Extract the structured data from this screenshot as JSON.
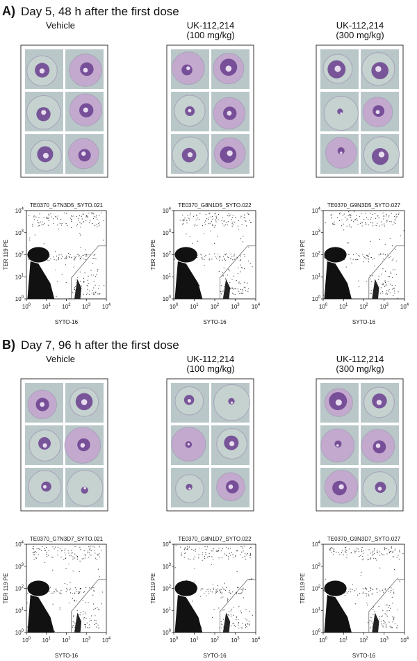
{
  "panels": [
    {
      "label": "A)",
      "title": "Day 5, 48 h after the first dose",
      "groups": [
        {
          "label_lines": [
            "Vehicle"
          ]
        },
        {
          "label_lines": [
            "UK-112,214",
            "(100 mg/kg)"
          ]
        },
        {
          "label_lines": [
            "UK-112,214",
            "(300 mg/kg)"
          ]
        }
      ],
      "plots": [
        {
          "title": "TE0370_G7N3D5_SYTO.021"
        },
        {
          "title": "TE0370_G8N1D5_SYTO.022"
        },
        {
          "title": "TE0370_G9N3D5_SYTO.027"
        }
      ]
    },
    {
      "label": "B)",
      "title": "Day 7, 96 h after the first dose",
      "groups": [
        {
          "label_lines": [
            "Vehicle"
          ]
        },
        {
          "label_lines": [
            "UK-112,214",
            "(100 mg/kg)"
          ]
        },
        {
          "label_lines": [
            "UK-112,214",
            "(300 mg/kg)"
          ]
        }
      ],
      "plots": [
        {
          "title": "TE0370_G7N3D7_SYTO.021"
        },
        {
          "title": "TE0370_G8N1D7_SYTO.022"
        },
        {
          "title": "TE0370_G9N3D7_SYTO.027"
        }
      ]
    }
  ],
  "axes": {
    "x_label": "SYTO-16",
    "y_label": "TER 119 PE",
    "tick_base": "10",
    "tick_exponents": [
      "0",
      "1",
      "2",
      "3",
      "4"
    ]
  }
}
